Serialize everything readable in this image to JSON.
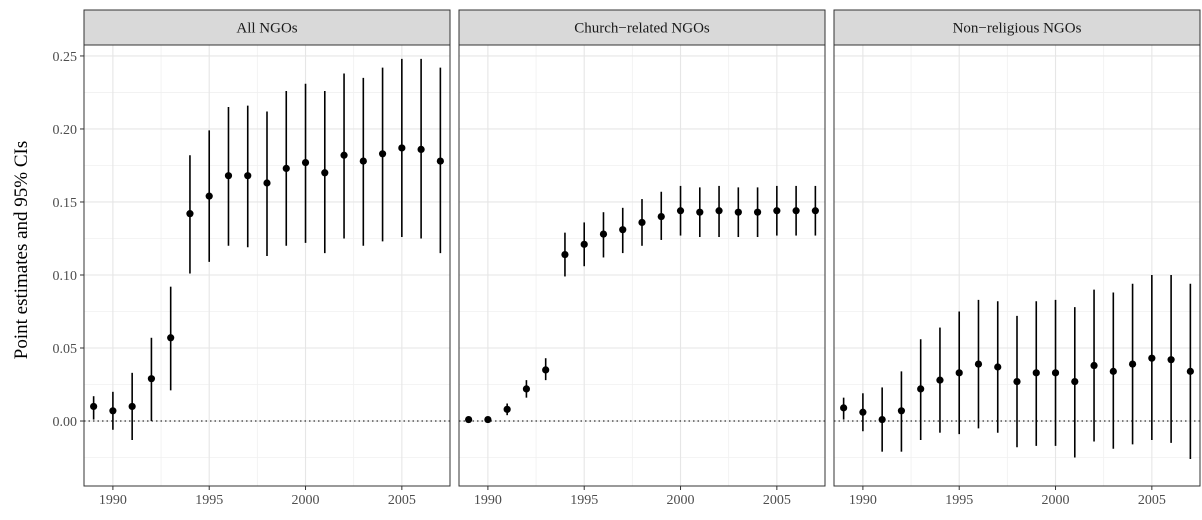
{
  "chart_data": {
    "type": "scatter",
    "ylabel": "Point estimates and 95% CIs",
    "xlabel": "",
    "xlim": [
      1988.5,
      2007.5
    ],
    "ylim": [
      -0.0445,
      0.2575
    ],
    "x_ticks": [
      1990,
      1995,
      2000,
      2005
    ],
    "y_ticks": [
      0.0,
      0.05,
      0.1,
      0.15,
      0.2,
      0.25
    ],
    "y_tick_labels": [
      "0.00",
      "0.05",
      "0.10",
      "0.15",
      "0.20",
      "0.25"
    ],
    "reference_line": 0,
    "grid": true,
    "panels": [
      {
        "title": "All NGOs",
        "x": [
          1989,
          1990,
          1991,
          1992,
          1993,
          1994,
          1995,
          1996,
          1997,
          1998,
          1999,
          2000,
          2001,
          2002,
          2003,
          2004,
          2005,
          2006,
          2007
        ],
        "estimate": [
          0.01,
          0.007,
          0.01,
          0.029,
          0.057,
          0.142,
          0.154,
          0.168,
          0.168,
          0.163,
          0.173,
          0.177,
          0.17,
          0.182,
          0.178,
          0.183,
          0.187,
          0.186,
          0.178
        ],
        "lower": [
          0.001,
          -0.006,
          -0.013,
          0.0,
          0.021,
          0.101,
          0.109,
          0.12,
          0.119,
          0.113,
          0.12,
          0.122,
          0.115,
          0.125,
          0.12,
          0.123,
          0.126,
          0.125,
          0.115
        ],
        "upper": [
          0.017,
          0.02,
          0.033,
          0.057,
          0.092,
          0.182,
          0.199,
          0.215,
          0.216,
          0.212,
          0.226,
          0.231,
          0.226,
          0.238,
          0.235,
          0.242,
          0.248,
          0.248,
          0.242
        ]
      },
      {
        "title": "Church−related NGOs",
        "x": [
          1989,
          1990,
          1991,
          1992,
          1993,
          1994,
          1995,
          1996,
          1997,
          1998,
          1999,
          2000,
          2001,
          2002,
          2003,
          2004,
          2005,
          2006,
          2007
        ],
        "estimate": [
          0.001,
          0.001,
          0.008,
          0.022,
          0.035,
          0.114,
          0.121,
          0.128,
          0.131,
          0.136,
          0.14,
          0.144,
          0.143,
          0.144,
          0.143,
          0.143,
          0.144,
          0.144,
          0.144
        ],
        "lower": [
          0.0,
          0.0,
          0.004,
          0.016,
          0.028,
          0.099,
          0.106,
          0.112,
          0.115,
          0.12,
          0.124,
          0.127,
          0.126,
          0.126,
          0.126,
          0.126,
          0.127,
          0.127,
          0.127
        ],
        "upper": [
          0.002,
          0.002,
          0.012,
          0.028,
          0.043,
          0.129,
          0.136,
          0.143,
          0.146,
          0.152,
          0.157,
          0.161,
          0.16,
          0.161,
          0.16,
          0.16,
          0.161,
          0.161,
          0.161
        ]
      },
      {
        "title": "Non−religious NGOs",
        "x": [
          1989,
          1990,
          1991,
          1992,
          1993,
          1994,
          1995,
          1996,
          1997,
          1998,
          1999,
          2000,
          2001,
          2002,
          2003,
          2004,
          2005,
          2006,
          2007
        ],
        "estimate": [
          0.009,
          0.006,
          0.001,
          0.007,
          0.022,
          0.028,
          0.033,
          0.039,
          0.037,
          0.027,
          0.033,
          0.033,
          0.027,
          0.038,
          0.034,
          0.039,
          0.043,
          0.042,
          0.034
        ],
        "lower": [
          0.001,
          -0.007,
          -0.021,
          -0.021,
          -0.013,
          -0.008,
          -0.009,
          -0.005,
          -0.008,
          -0.018,
          -0.017,
          -0.017,
          -0.025,
          -0.014,
          -0.019,
          -0.016,
          -0.013,
          -0.015,
          -0.026
        ],
        "upper": [
          0.016,
          0.019,
          0.023,
          0.034,
          0.056,
          0.064,
          0.075,
          0.083,
          0.082,
          0.072,
          0.082,
          0.083,
          0.078,
          0.09,
          0.088,
          0.094,
          0.1,
          0.1,
          0.094
        ]
      }
    ]
  }
}
